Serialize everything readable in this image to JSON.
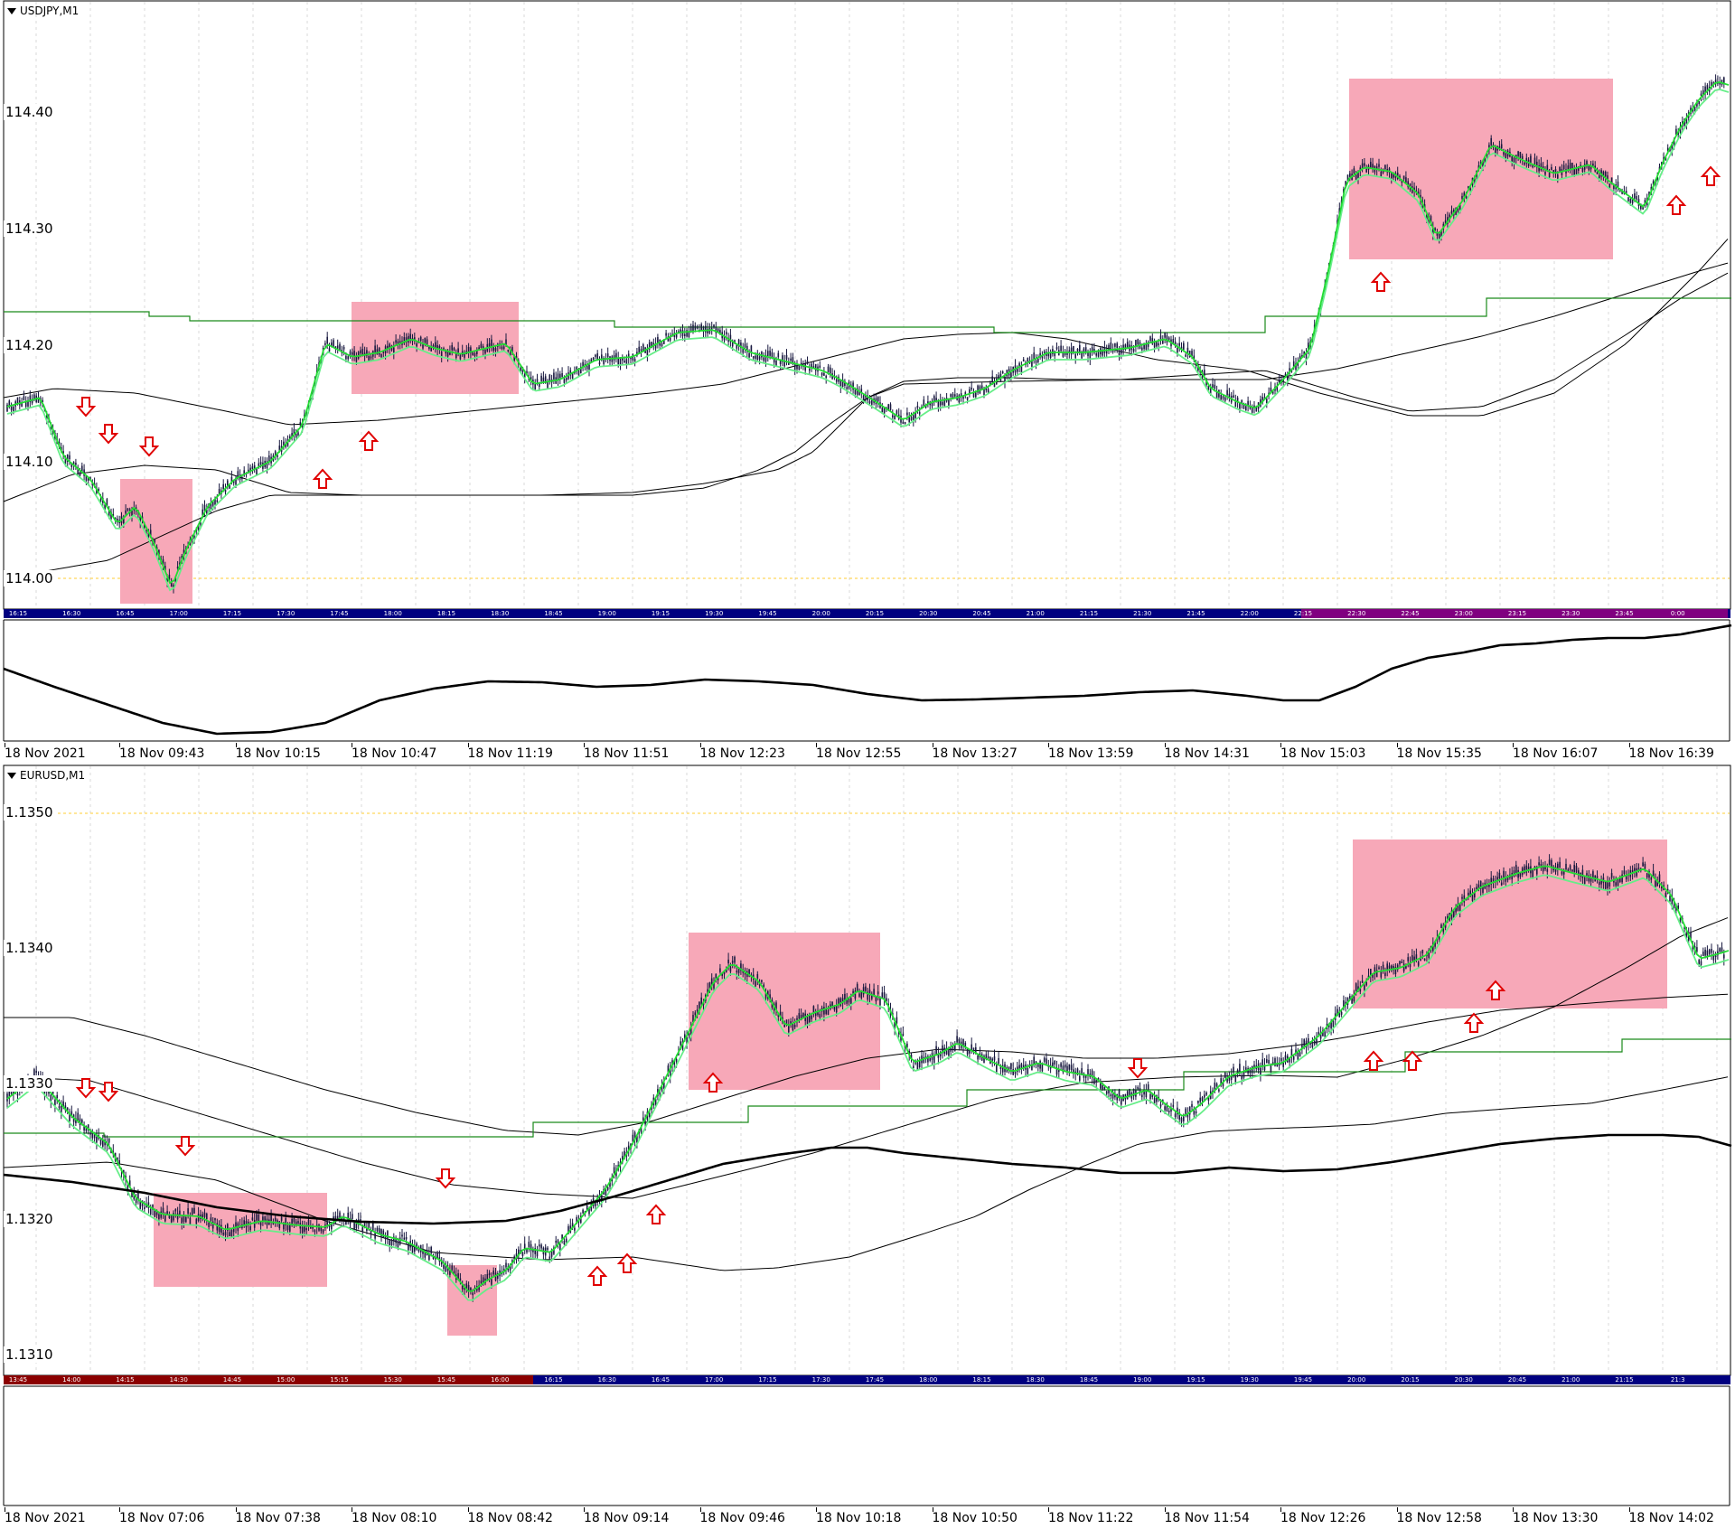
{
  "charts": [
    {
      "symbol": "USDJPY,M1",
      "price_labels": [
        "114.40",
        "114.30",
        "114.20",
        "114.10",
        "114.00"
      ],
      "time_band": [
        "16:15",
        "16:30",
        "16:45",
        "17:00",
        "17:15",
        "17:30",
        "17:45",
        "18:00",
        "18:15",
        "18:30",
        "18:45",
        "19:00",
        "19:15",
        "19:30",
        "19:45",
        "20:00",
        "20:15",
        "20:30",
        "20:45",
        "21:00",
        "21:15",
        "21:30",
        "21:45",
        "22:00",
        "22:15",
        "22:30",
        "22:45",
        "23:00",
        "23:15",
        "23:30",
        "23:45",
        "0:00"
      ],
      "axis_labels": [
        "18 Nov 2021",
        "18 Nov 09:43",
        "18 Nov 10:15",
        "18 Nov 10:47",
        "18 Nov 11:19",
        "18 Nov 11:51",
        "18 Nov 12:23",
        "18 Nov 12:55",
        "18 Nov 13:27",
        "18 Nov 13:59",
        "18 Nov 14:31",
        "18 Nov 15:03",
        "18 Nov 15:35",
        "18 Nov 16:07",
        "18 Nov 16:39"
      ],
      "colors": {
        "zone": "#f7a8b8",
        "arrow": "#e00000",
        "ma_fast": "#22dd33",
        "ma_slow": "#66ee88",
        "envelope": "#000000",
        "step": "#1a8a1a",
        "level": "#ffcc33",
        "band": "#000080",
        "band_alt": "#800080"
      }
    },
    {
      "symbol": "EURUSD,M1",
      "price_labels": [
        "1.1350",
        "1.1340",
        "1.1330",
        "1.1320",
        "1.1310"
      ],
      "time_band": [
        "13:45",
        "14:00",
        "14:15",
        "14:30",
        "14:45",
        "15:00",
        "15:15",
        "15:30",
        "15:45",
        "16:00",
        "16:15",
        "16:30",
        "16:45",
        "17:00",
        "17:15",
        "17:30",
        "17:45",
        "18:00",
        "18:15",
        "18:30",
        "18:45",
        "19:00",
        "19:15",
        "19:30",
        "19:45",
        "20:00",
        "20:15",
        "20:30",
        "20:45",
        "21:00",
        "21:15",
        "21:3"
      ],
      "axis_labels": [
        "18 Nov 2021",
        "18 Nov 07:06",
        "18 Nov 07:38",
        "18 Nov 08:10",
        "18 Nov 08:42",
        "18 Nov 09:14",
        "18 Nov 09:46",
        "18 Nov 10:18",
        "18 Nov 10:50",
        "18 Nov 11:22",
        "18 Nov 11:54",
        "18 Nov 12:26",
        "18 Nov 12:58",
        "18 Nov 13:30",
        "18 Nov 14:02"
      ],
      "colors": {
        "zone": "#f7a8b8",
        "arrow": "#e00000",
        "ma_fast": "#22dd33",
        "ma_slow": "#66ee88",
        "envelope": "#000000",
        "step": "#1a8a1a",
        "level": "#ffcc33",
        "band": "#000080",
        "band_alt": "#8b0000"
      }
    }
  ]
}
